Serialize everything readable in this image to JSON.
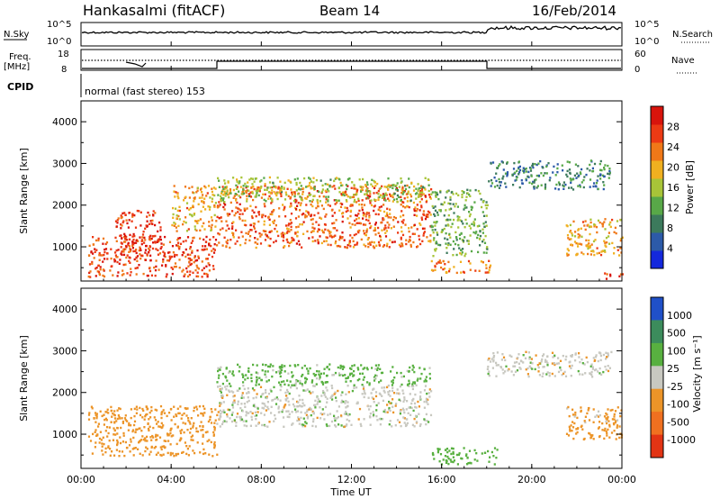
{
  "header": {
    "station": "Hankasalmi (fitACF)",
    "beam": "Beam 14",
    "date": "16/Feb/2014"
  },
  "top_panels": {
    "nsky_label": "N.Sky",
    "nsky_ticks": [
      "10^5",
      "10^0"
    ],
    "nsearch_label": "N.Search",
    "nsearch_ticks": [
      "10^5",
      "10^0"
    ],
    "freq_label_1": "Freq.",
    "freq_label_2": "[MHz]",
    "freq_ticks": [
      "18",
      "8"
    ],
    "nave_label": "Nave",
    "nave_ticks": [
      "60",
      "0"
    ],
    "cpid_label": "CPID",
    "cpid_text": "normal (fast stereo) 153"
  },
  "axes": {
    "ylabel": "Slant Range [km]",
    "yticks": [
      "1000",
      "2000",
      "3000",
      "4000"
    ],
    "xticks": [
      "00:00",
      "04:00",
      "08:00",
      "12:00",
      "16:00",
      "20:00",
      "00:00"
    ],
    "xlabel": "Time UT"
  },
  "power_colorbar": {
    "label": "Power [dB]",
    "ticks": [
      "4",
      "8",
      "12",
      "16",
      "20",
      "24",
      "28"
    ],
    "colors": [
      "#1428dc",
      "#2c5aa8",
      "#3c7a5c",
      "#58a848",
      "#a8c438",
      "#f0b020",
      "#f07818",
      "#ec3a14",
      "#d8140c"
    ]
  },
  "velocity_colorbar": {
    "label": "Velocity [m s⁻¹]",
    "ticks": [
      "1000",
      "500",
      "100",
      "25",
      "-25",
      "-100",
      "-500",
      "-1000"
    ],
    "colors": [
      "#2050c8",
      "#3c8c5c",
      "#58b040",
      "#c8c8c0",
      "#ec9428",
      "#f07020",
      "#e23414"
    ]
  },
  "chart_data": [
    {
      "type": "heatmap",
      "title": "Power",
      "x_range_hours": [
        0,
        24
      ],
      "y_range_km": [
        180,
        4500
      ],
      "ylabel": "Slant Range [km]",
      "colorbar_label": "Power [dB]",
      "colorbar_range": [
        0,
        30
      ],
      "regions": [
        {
          "t0": 0.3,
          "t1": 6.0,
          "r0": 300,
          "r1": 1300,
          "level": 26
        },
        {
          "t0": 1.5,
          "t1": 3.5,
          "r0": 800,
          "r1": 1900,
          "level": 28
        },
        {
          "t0": 4.0,
          "t1": 6.0,
          "r0": 1400,
          "r1": 2500,
          "level": 20
        },
        {
          "t0": 6.0,
          "t1": 15.5,
          "r0": 1000,
          "r1": 2500,
          "level": 24
        },
        {
          "t0": 6.0,
          "t1": 15.5,
          "r0": 2100,
          "r1": 2700,
          "level": 14
        },
        {
          "t0": 15.5,
          "t1": 18.0,
          "r0": 800,
          "r1": 2400,
          "level": 12
        },
        {
          "t0": 15.5,
          "t1": 18.2,
          "r0": 400,
          "r1": 700,
          "level": 22
        },
        {
          "t0": 18.0,
          "t1": 23.5,
          "r0": 2400,
          "r1": 3100,
          "level": 8
        },
        {
          "t0": 21.5,
          "t1": 24.0,
          "r0": 800,
          "r1": 1700,
          "level": 20
        },
        {
          "t0": 23.0,
          "t1": 24.0,
          "r0": 250,
          "r1": 400,
          "level": 26
        }
      ]
    },
    {
      "type": "heatmap",
      "title": "Velocity",
      "x_range_hours": [
        0,
        24
      ],
      "y_range_km": [
        180,
        4500
      ],
      "ylabel": "Slant Range [km]",
      "colorbar_label": "Velocity [m s⁻¹]",
      "colorbar_range": [
        -1000,
        1000
      ],
      "regions": [
        {
          "t0": 0.3,
          "t1": 6.0,
          "r0": 500,
          "r1": 1700,
          "level": -150
        },
        {
          "t0": 6.0,
          "t1": 15.5,
          "r0": 1200,
          "r1": 2200,
          "level": 0
        },
        {
          "t0": 6.0,
          "t1": 15.5,
          "r0": 2200,
          "r1": 2700,
          "level": 120
        },
        {
          "t0": 15.5,
          "t1": 18.5,
          "r0": 300,
          "r1": 700,
          "level": 150
        },
        {
          "t0": 18.0,
          "t1": 23.5,
          "r0": 2400,
          "r1": 3000,
          "level": 0
        },
        {
          "t0": 21.5,
          "t1": 24.0,
          "r0": 900,
          "r1": 1700,
          "level": -120
        }
      ]
    }
  ]
}
